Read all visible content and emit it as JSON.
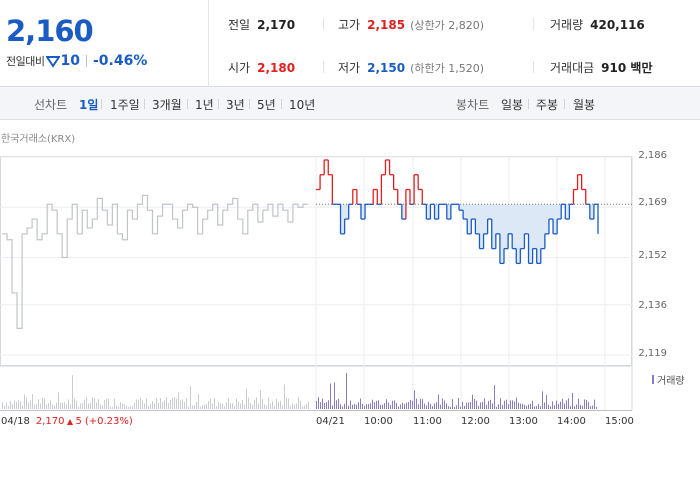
{
  "summary": {
    "current_price": "2,160",
    "change_label": "전일대비",
    "change_amount": "10",
    "change_rate": "-0.46%",
    "stats": {
      "prev_close": {
        "label": "전일",
        "value": "2,170"
      },
      "high": {
        "label": "고가",
        "value": "2,185",
        "sub": "(상한가 2,820)"
      },
      "volume": {
        "label": "거래량",
        "value": "420,116"
      },
      "open": {
        "label": "시가",
        "value": "2,180"
      },
      "low": {
        "label": "저가",
        "value": "2,150",
        "sub": "(하한가 1,520)"
      },
      "amount": {
        "label": "거래대금",
        "value": "910 백만"
      }
    }
  },
  "tabs": {
    "line_label": "선차트",
    "line_periods": [
      "1일",
      "1주일",
      "3개월",
      "1년",
      "3년",
      "5년",
      "10년"
    ],
    "active_period": "1일",
    "candle_label": "봉차트",
    "candle_periods": [
      "일봉",
      "주봉",
      "월봉"
    ]
  },
  "chart": {
    "exchange": "한국거래소(KRX)",
    "volume_legend": "거래량",
    "y_ticks": [
      "2,186",
      "2,169",
      "2,152",
      "2,136",
      "2,119"
    ],
    "x_ticks": [
      "04/21",
      "10:00",
      "11:00",
      "12:00",
      "13:00",
      "14:00",
      "15:00"
    ],
    "prev_day": {
      "date": "04/18",
      "price": "2,170",
      "change": "5",
      "rate": "(+0.23%)"
    },
    "colors": {
      "up": "#e02020",
      "down": "#1a5bc4",
      "prev": "#c0c4c9",
      "fill": "#dde8f7",
      "volume": "#8a7bc8"
    }
  },
  "chart_data": {
    "type": "line",
    "y_range": [
      2119,
      2186
    ],
    "reference_price": 2170,
    "prev_day_series": [
      2160,
      2158,
      2140,
      2128,
      2160,
      2162,
      2165,
      2158,
      2160,
      2170,
      2168,
      2160,
      2152,
      2165,
      2170,
      2160,
      2168,
      2162,
      2165,
      2172,
      2168,
      2163,
      2170,
      2160,
      2158,
      2168,
      2165,
      2170,
      2173,
      2168,
      2160,
      2166,
      2170,
      2170,
      2165,
      2162,
      2168,
      2170,
      2169,
      2160,
      2165,
      2168,
      2170,
      2163,
      2168,
      2170,
      2172,
      2165,
      2160,
      2168,
      2170,
      2164,
      2168,
      2170,
      2166,
      2170,
      2168,
      2164,
      2170,
      2169,
      2170,
      2170
    ],
    "today_series": [
      2175,
      2180,
      2185,
      2180,
      2170,
      2170,
      2160,
      2165,
      2170,
      2175,
      2170,
      2165,
      2170,
      2170,
      2175,
      2170,
      2180,
      2185,
      2180,
      2175,
      2170,
      2165,
      2175,
      2170,
      2180,
      2175,
      2170,
      2165,
      2170,
      2165,
      2170,
      2170,
      2165,
      2170,
      2170,
      2168,
      2165,
      2160,
      2165,
      2160,
      2155,
      2160,
      2165,
      2155,
      2160,
      2150,
      2155,
      2160,
      2155,
      2150,
      2155,
      2160,
      2150,
      2155,
      2150,
      2155,
      2160,
      2165,
      2160,
      2165,
      2170,
      2165,
      2170,
      2175,
      2180,
      2175,
      2170,
      2165,
      2170,
      2160
    ],
    "volume_note": "relative volume bars for previous day and today"
  }
}
